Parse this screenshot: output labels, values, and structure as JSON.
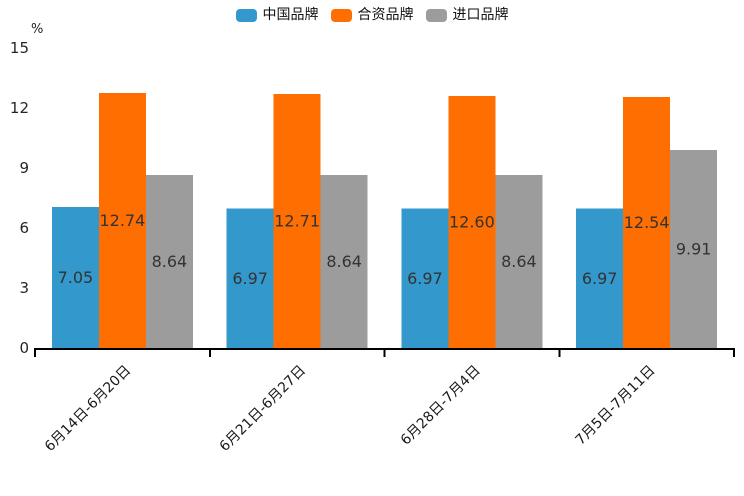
{
  "chart_data": {
    "type": "bar",
    "title": "",
    "unit": "%",
    "categories": [
      "6月14日-6月20日",
      "6月21日-6月27日",
      "6月28日-7月4日",
      "7月5日-7月11日"
    ],
    "series": [
      {
        "id": "china-brand",
        "name": "中国品牌",
        "color": "#3398cc",
        "values": [
          7.05,
          6.97,
          6.97,
          6.97
        ]
      },
      {
        "id": "joint-venture-brand",
        "name": "合资品牌",
        "color": "#ff6e00",
        "values": [
          12.74,
          12.71,
          12.6,
          12.54
        ]
      },
      {
        "id": "import-brand",
        "name": "进口品牌",
        "color": "#9c9c9c",
        "values": [
          8.64,
          8.64,
          8.64,
          9.91
        ]
      }
    ],
    "ylim": [
      0,
      15
    ],
    "yticks": [
      0,
      3,
      6,
      9,
      12,
      15
    ],
    "grid": false,
    "legend_position": "top-center",
    "value_labels": true,
    "value_label_decimals": 2,
    "xtick_rotation_deg": 45,
    "colors": {
      "axis": "#000000",
      "tick_text": "#262626",
      "value_label_text": "#333333",
      "xtick_text": "#1a1a1a"
    }
  }
}
